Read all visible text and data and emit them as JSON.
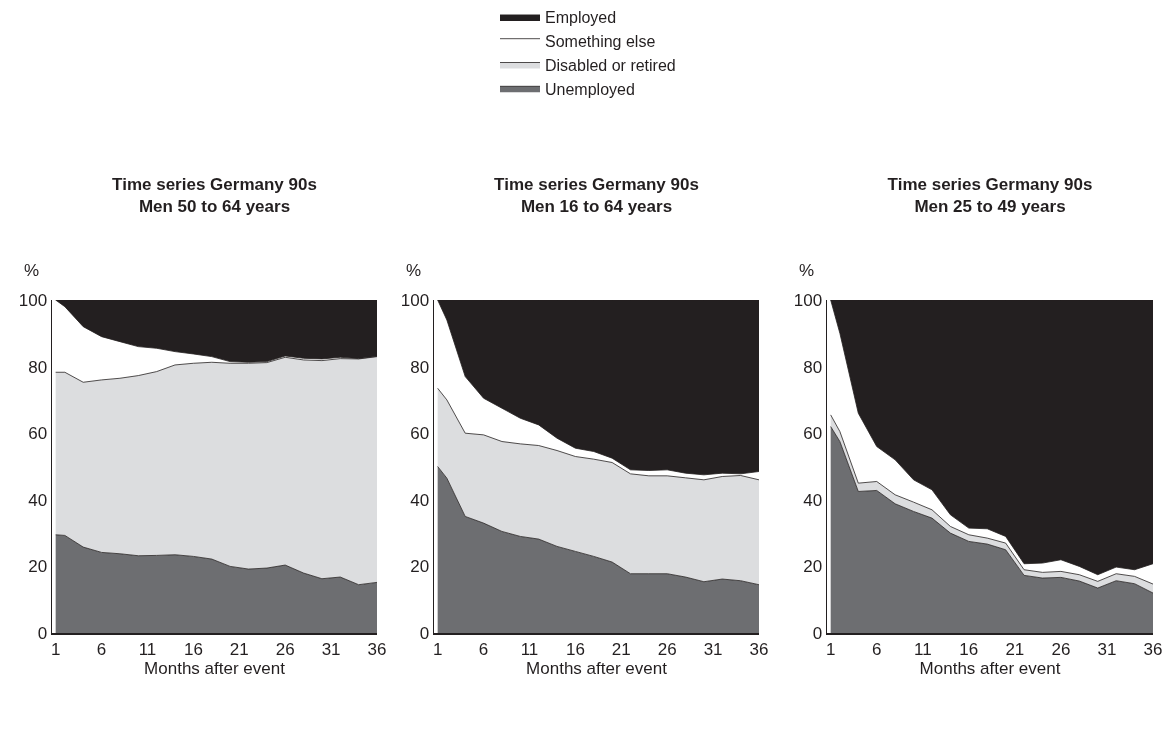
{
  "chart_data": [
    {
      "type": "area",
      "stacked": true,
      "title": "Time series Germany 90s",
      "subtitle": "Men 50 to 64 years",
      "xlabel": "Months after event",
      "ylabel": "%",
      "legend": "top",
      "x": [
        1,
        2,
        4,
        6,
        8,
        10,
        12,
        14,
        16,
        18,
        20,
        22,
        24,
        26,
        28,
        30,
        32,
        34,
        36
      ],
      "xlim": [
        0.6,
        36
      ],
      "xticks": [
        1,
        6,
        11,
        16,
        21,
        26,
        31,
        36
      ],
      "ylim": [
        0,
        100
      ],
      "yticks": [
        0,
        20,
        40,
        60,
        80,
        100
      ],
      "series": [
        {
          "name": "Unemployed",
          "color": "#6d6e71",
          "values": [
            29.5,
            29.3,
            25.8,
            24.2,
            23.8,
            23.2,
            23.3,
            23.5,
            23,
            22.2,
            20,
            19.2,
            19.5,
            20.4,
            18,
            16.3,
            16.8,
            14.5,
            15.2
          ]
        },
        {
          "name": "Disabled or retired",
          "color": "#dcdddf",
          "values": [
            48.8,
            49.0,
            49.5,
            51.8,
            52.7,
            54.1,
            55.2,
            57,
            58,
            59.1,
            61,
            61.8,
            61.7,
            62.4,
            64,
            65.5,
            65.6,
            67.8,
            67.8
          ]
        },
        {
          "name": "Something else",
          "color": "#ffffff",
          "values": [
            21.7,
            19.7,
            16.7,
            13,
            11,
            8.7,
            7,
            4,
            2.8,
            1.7,
            0.5,
            0.3,
            0.3,
            0.4,
            0.5,
            0.5,
            0.4,
            0.1,
            0.1
          ]
        },
        {
          "name": "Employed",
          "color": "#231f20",
          "values": [
            0,
            2,
            8,
            11,
            12.5,
            14,
            14.5,
            15.5,
            16.2,
            17,
            18.5,
            18.7,
            18.5,
            16.8,
            17.5,
            17.7,
            17.2,
            17.6,
            16.9
          ]
        }
      ]
    },
    {
      "type": "area",
      "stacked": true,
      "title": "Time series Germany 90s",
      "subtitle": "Men 16 to 64 years",
      "xlabel": "Months after event",
      "ylabel": "%",
      "x": [
        1,
        2,
        4,
        6,
        8,
        10,
        12,
        14,
        16,
        18,
        20,
        22,
        24,
        26,
        28,
        30,
        32,
        34,
        36
      ],
      "xlim": [
        0.6,
        36
      ],
      "xticks": [
        1,
        6,
        11,
        16,
        21,
        26,
        31,
        36
      ],
      "ylim": [
        0,
        100
      ],
      "yticks": [
        0,
        20,
        40,
        60,
        80,
        100
      ],
      "series": [
        {
          "color": "#6d6e71",
          "values": [
            50,
            46.5,
            35,
            33,
            30.5,
            29,
            28.2,
            26,
            24.5,
            23,
            21.3,
            17.8,
            17.8,
            17.8,
            16.8,
            15.4,
            16.2,
            15.7,
            14.5
          ]
        },
        {
          "color": "#dcdddf",
          "values": [
            23.5,
            23.5,
            25,
            26.5,
            27,
            27.8,
            28.1,
            28.8,
            28.5,
            29.2,
            29.9,
            30,
            29.4,
            29.4,
            29.8,
            30.6,
            30.8,
            31.6,
            31.5
          ]
        },
        {
          "color": "#ffffff",
          "values": [
            26.5,
            24,
            17,
            11,
            10,
            7.7,
            6.2,
            3.7,
            2.5,
            2.3,
            1.3,
            1.2,
            1.6,
            1.8,
            1.4,
            1.5,
            1,
            0.5,
            2.5
          ]
        },
        {
          "color": "#231f20",
          "values": [
            0,
            6,
            23,
            29.5,
            32.5,
            35.5,
            37.5,
            41.5,
            44.5,
            45.5,
            47.5,
            51,
            51.2,
            51,
            52,
            52.5,
            52,
            52.2,
            51.5
          ]
        }
      ]
    },
    {
      "type": "area",
      "stacked": true,
      "title": "Time series Germany 90s",
      "subtitle": "Men 25 to 49 years",
      "xlabel": "Months after event",
      "ylabel": "%",
      "x": [
        1,
        2,
        4,
        6,
        8,
        10,
        12,
        14,
        16,
        18,
        20,
        22,
        24,
        26,
        28,
        30,
        32,
        34,
        36
      ],
      "xlim": [
        0.6,
        36
      ],
      "xticks": [
        1,
        6,
        11,
        16,
        21,
        26,
        31,
        36
      ],
      "ylim": [
        0,
        100
      ],
      "yticks": [
        0,
        20,
        40,
        60,
        80,
        100
      ],
      "series": [
        {
          "color": "#6d6e71",
          "values": [
            62,
            57.5,
            42.5,
            42.8,
            38.8,
            36.5,
            34.5,
            30,
            27.5,
            26.7,
            25,
            17.3,
            16.5,
            16.7,
            15.6,
            13.5,
            15.7,
            14.8,
            12
          ]
        },
        {
          "color": "#dcdddf",
          "values": [
            3.5,
            3,
            2.5,
            2.7,
            2.7,
            2.8,
            2.5,
            2,
            2,
            1.8,
            2,
            1.7,
            1.7,
            1.8,
            1.9,
            2,
            2.1,
            2.2,
            2.7
          ]
        },
        {
          "color": "#ffffff",
          "values": [
            34.5,
            29.5,
            21,
            10.5,
            10.5,
            6.7,
            6,
            3.5,
            2,
            2.8,
            2,
            1.8,
            2.8,
            3.5,
            2.5,
            2,
            2,
            2,
            6.1
          ]
        },
        {
          "color": "#231f20",
          "values": [
            0,
            10,
            34,
            44,
            48,
            54,
            57,
            64.5,
            68.5,
            68.7,
            71,
            79.2,
            79,
            78,
            80,
            82.5,
            80.2,
            81,
            79.2
          ]
        }
      ]
    }
  ]
}
